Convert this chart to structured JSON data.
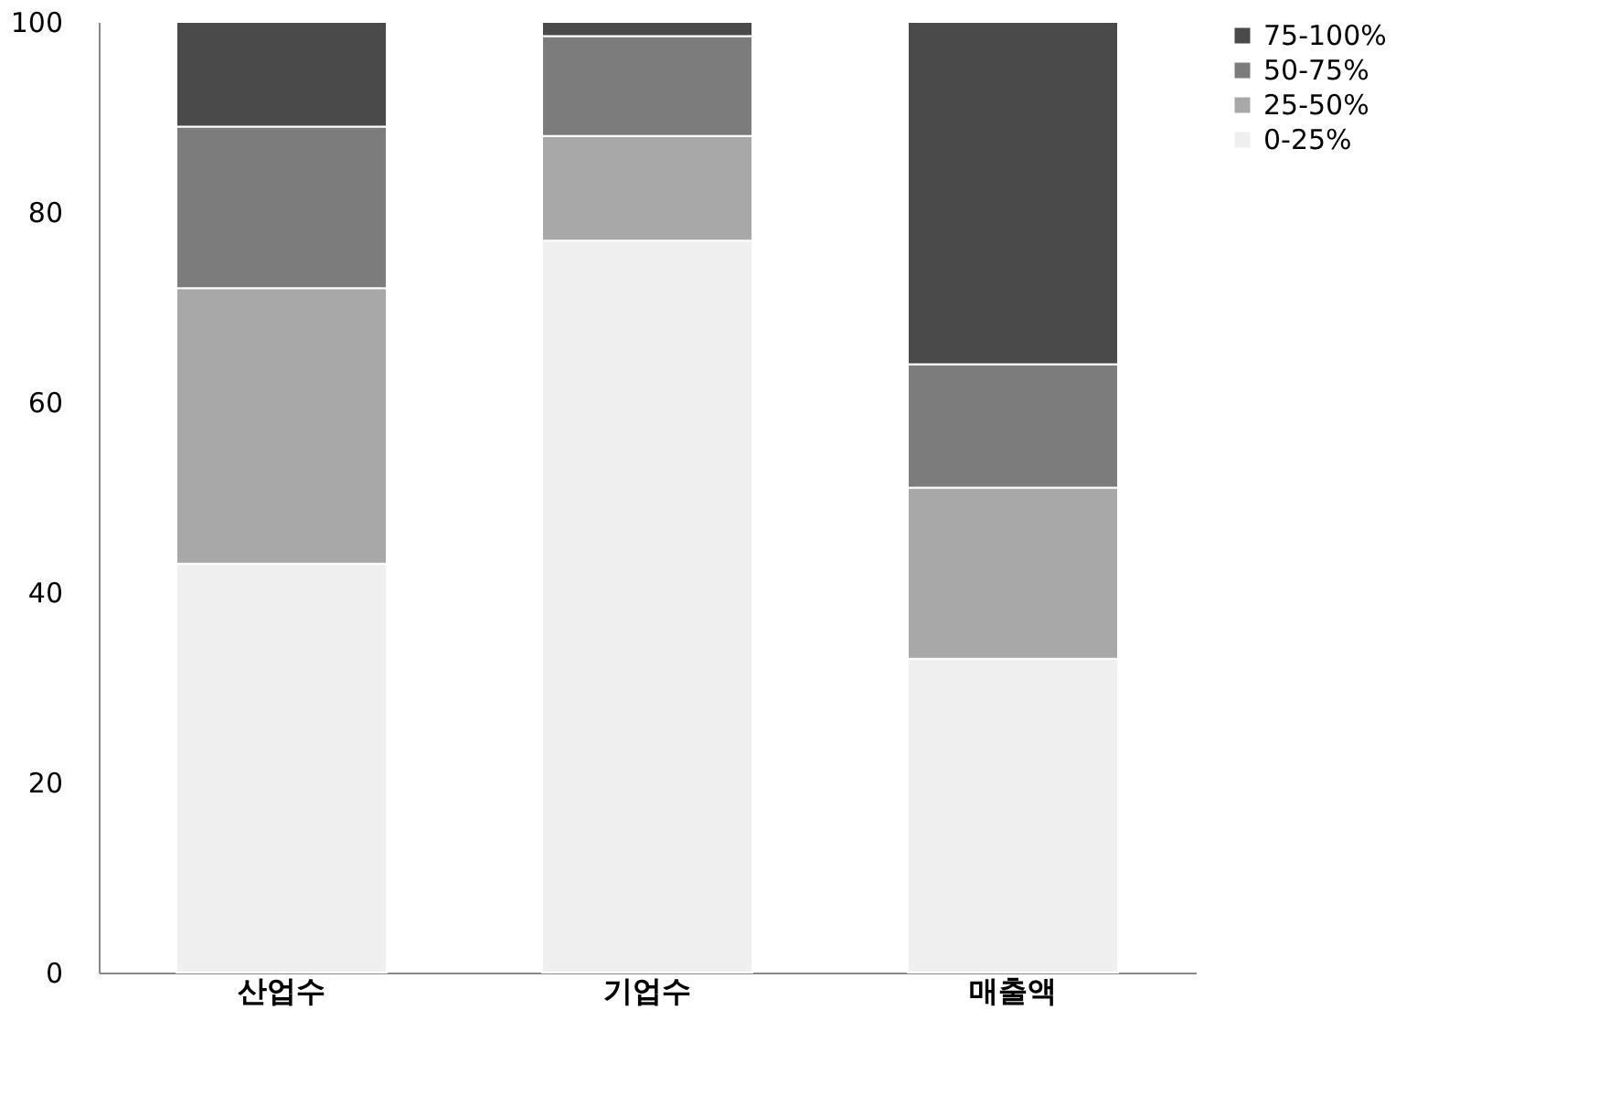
{
  "chart_data": {
    "type": "bar",
    "stacked": true,
    "categories": [
      "산업수",
      "기업수",
      "매출액"
    ],
    "series": [
      {
        "name": "0-25%",
        "color": "#efefef",
        "values": [
          43,
          77,
          33
        ]
      },
      {
        "name": "25-50%",
        "color": "#a8a8a8",
        "values": [
          29,
          11,
          18
        ]
      },
      {
        "name": "50-75%",
        "color": "#7c7c7c",
        "values": [
          17,
          10.5,
          13
        ]
      },
      {
        "name": "75-100%",
        "color": "#4a4a4a",
        "values": [
          11,
          1.5,
          36
        ]
      }
    ],
    "ylim": [
      0,
      100
    ],
    "yticks": [
      0,
      20,
      40,
      60,
      80,
      100
    ],
    "grid": false,
    "legend": "right"
  }
}
